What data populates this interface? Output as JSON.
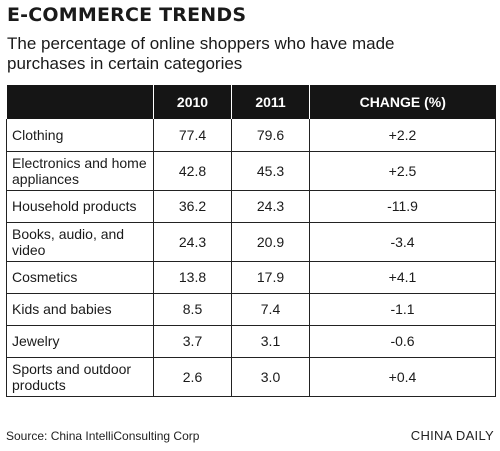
{
  "header": {
    "title": "E-COMMERCE TRENDS",
    "subtitle": "The percentage of online shoppers who have made purchases in certain categories"
  },
  "chart_data": {
    "type": "table",
    "title": "E-COMMERCE TRENDS",
    "subtitle": "The percentage of online shoppers who have made purchases in certain categories",
    "columns": [
      "",
      "2010",
      "2011",
      "CHANGE (%)"
    ],
    "rows": [
      {
        "category": "Clothing",
        "y2010": "77.4",
        "y2011": "79.6",
        "change": "+2.2"
      },
      {
        "category": "Electronics and home appliances",
        "y2010": "42.8",
        "y2011": "45.3",
        "change": "+2.5"
      },
      {
        "category": "Household products",
        "y2010": "36.2",
        "y2011": "24.3",
        "change": "-11.9"
      },
      {
        "category": "Books, audio, and video",
        "y2010": "24.3",
        "y2011": "20.9",
        "change": "-3.4"
      },
      {
        "category": "Cosmetics",
        "y2010": "13.8",
        "y2011": "17.9",
        "change": "+4.1"
      },
      {
        "category": "Kids and babies",
        "y2010": "8.5",
        "y2011": "7.4",
        "change": "-1.1"
      },
      {
        "category": "Jewelry",
        "y2010": "3.7",
        "y2011": "3.1",
        "change": "-0.6"
      },
      {
        "category": "Sports and outdoor products",
        "y2010": "2.6",
        "y2011": "3.0",
        "change": "+0.4"
      }
    ]
  },
  "footer": {
    "source": "Source: China IntelliConsulting Corp",
    "credit": "CHINA DAILY"
  }
}
